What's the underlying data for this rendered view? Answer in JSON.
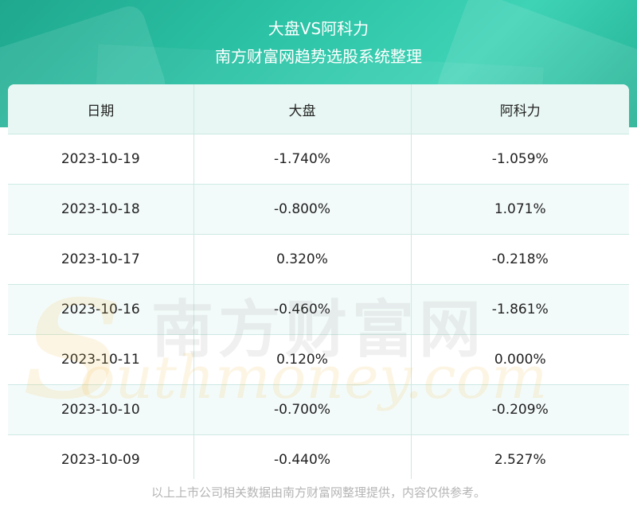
{
  "header": {
    "title": "大盘VS阿科力",
    "subtitle": "南方财富网趋势选股系统整理"
  },
  "chart_data": {
    "type": "table",
    "columns": [
      "日期",
      "大盘",
      "阿科力"
    ],
    "rows": [
      [
        "2023-10-19",
        "-1.740%",
        "-1.059%"
      ],
      [
        "2023-10-18",
        "-0.800%",
        "1.071%"
      ],
      [
        "2023-10-17",
        "0.320%",
        "-0.218%"
      ],
      [
        "2023-10-16",
        "-0.460%",
        "-1.861%"
      ],
      [
        "2023-10-11",
        "0.120%",
        "0.000%"
      ],
      [
        "2023-10-10",
        "-0.700%",
        "-0.209%"
      ],
      [
        "2023-10-09",
        "-0.440%",
        "2.527%"
      ]
    ]
  },
  "watermark": {
    "cn": "南方财富网",
    "en": "outhmoney.com",
    "s": "S"
  },
  "footer": "以上上市公司相关数据由南方财富网整理提供，内容仅供参考。",
  "colors": {
    "header_bg": "#2cc3a6",
    "table_header_bg": "#e8f7f3",
    "border": "#cde9e3"
  }
}
